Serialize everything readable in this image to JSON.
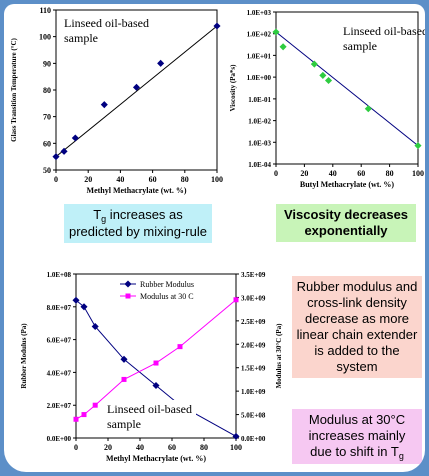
{
  "colors": {
    "background": "#5c8fc8",
    "line": "#000080",
    "marker_dark": "#000080",
    "marker_green": "#2ecc40",
    "magenta": "#ff00ff"
  },
  "captions": {
    "tg_prefix": "T",
    "tg_sub": "g",
    "tg_text": " increases as predicted by mixing-rule",
    "viscosity": "Viscosity decreases exponentially",
    "rubber": "Rubber modulus and cross-link density decrease as more linear chain extender is added to the system",
    "mod30_text": "Modulus at 30°C increases mainly due to shift in T",
    "mod30_sub": "g"
  },
  "chart_data": [
    {
      "type": "line",
      "annotation": "Linseed oil-based sample",
      "xlabel": "Methyl Methacrylate (wt. %)",
      "ylabel": "Glass Transition Temperature (°C)",
      "xlim": [
        0,
        100
      ],
      "ylim": [
        50,
        110
      ],
      "xticks": [
        "0",
        "20",
        "40",
        "60",
        "80",
        "100"
      ],
      "yticks": [
        "50",
        "60",
        "70",
        "80",
        "90",
        "100",
        "110"
      ],
      "points": [
        [
          0,
          55
        ],
        [
          5,
          57
        ],
        [
          12,
          62
        ],
        [
          30,
          74.5
        ],
        [
          50,
          81
        ],
        [
          65,
          90
        ],
        [
          100,
          104
        ]
      ],
      "fit": [
        [
          0,
          55
        ],
        [
          100,
          104
        ]
      ]
    },
    {
      "type": "scatter",
      "annotation": "Linseed oil-based sample",
      "xlabel": "Butyl Methacrylate (wt. %)",
      "ylabel": "Viscosity (Pa*s)",
      "scale": "log",
      "xlim": [
        0,
        100
      ],
      "ylim": [
        0.0001,
        1000
      ],
      "xticks": [
        "0",
        "20",
        "40",
        "60",
        "80",
        "100"
      ],
      "yticks": [
        "1.0E-04",
        "1.0E-03",
        "1.0E-02",
        "1.0E-01",
        "1.0E+00",
        "1.0E+01",
        "1.0E+02",
        "1.0E+03"
      ],
      "points": [
        [
          0,
          120
        ],
        [
          5,
          25
        ],
        [
          27,
          4
        ],
        [
          33,
          1.2
        ],
        [
          37,
          0.7
        ],
        [
          65,
          0.035
        ],
        [
          100,
          0.0007
        ]
      ],
      "fit": [
        [
          0,
          120
        ],
        [
          100,
          0.0007
        ]
      ]
    },
    {
      "type": "line",
      "annotation": "Linseed oil-based sample",
      "xlabel": "Methyl Methacrylate (wt. %)",
      "ylabel_left": "Rubber Modulus (Pa)",
      "ylabel_right": "Modulus at 30°C (Pa)",
      "xlim": [
        0,
        100
      ],
      "ylim_left": [
        0,
        100000000
      ],
      "ylim_right": [
        0,
        3500000000
      ],
      "xticks": [
        "0",
        "20",
        "40",
        "60",
        "80",
        "100"
      ],
      "yticks_left": [
        "0.0E+00",
        "2.0E+07",
        "4.0E+07",
        "6.0E+07",
        "8.0E+07",
        "1.0E+08"
      ],
      "yticks_right": [
        "0.0E+00",
        "5.0E+08",
        "1.0E+09",
        "1.5E+09",
        "2.0E+09",
        "2.5E+09",
        "3.0E+09",
        "3.5E+09"
      ],
      "series": [
        {
          "name": "Rubber Modulus",
          "axis": "left",
          "x": [
            0,
            5,
            12,
            30,
            50,
            65,
            100
          ],
          "y": [
            84000000,
            80000000,
            68000000,
            48000000,
            32000000,
            20000000,
            1000000
          ]
        },
        {
          "name": "Modulus at 30 C",
          "axis": "right",
          "x": [
            0,
            5,
            12,
            30,
            50,
            65,
            100
          ],
          "y": [
            400000000,
            500000000,
            700000000,
            1250000000,
            1600000000,
            1950000000,
            2950000000
          ]
        }
      ]
    }
  ]
}
